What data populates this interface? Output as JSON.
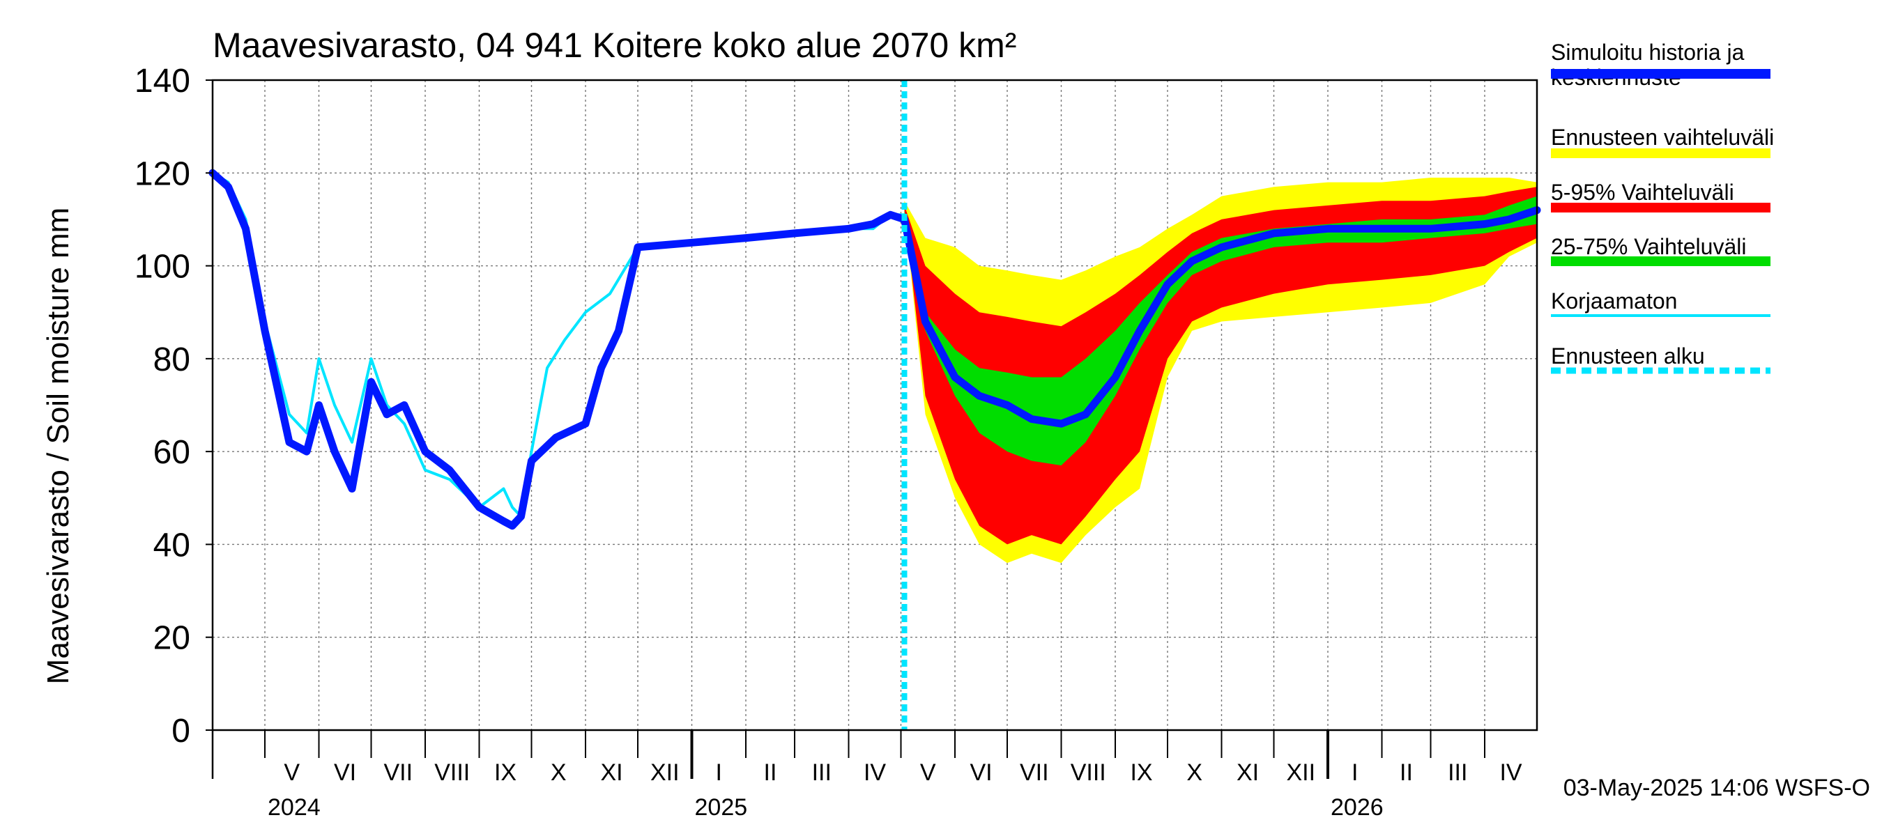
{
  "chart_data": {
    "type": "area",
    "title": "Maavesivarasto, 04 941 Koitere koko alue 2070 km²",
    "ylabel": "Maavesivarasto / Soil moisture   mm",
    "ylim": [
      0,
      140
    ],
    "yticks": [
      0,
      20,
      40,
      60,
      80,
      100,
      120,
      140
    ],
    "grid": true,
    "legend_position": "right",
    "x_axis": {
      "start": "2024-04-01",
      "end": "2026-05-01",
      "months": [
        {
          "start": "2024-04-01",
          "label": ""
        },
        {
          "start": "2024-05-01",
          "label": "V"
        },
        {
          "start": "2024-06-01",
          "label": "VI"
        },
        {
          "start": "2024-07-01",
          "label": "VII"
        },
        {
          "start": "2024-08-01",
          "label": "VIII"
        },
        {
          "start": "2024-09-01",
          "label": "IX"
        },
        {
          "start": "2024-10-01",
          "label": "X"
        },
        {
          "start": "2024-11-01",
          "label": "XI"
        },
        {
          "start": "2024-12-01",
          "label": "XII"
        },
        {
          "start": "2025-01-01",
          "label": "I"
        },
        {
          "start": "2025-02-01",
          "label": "II"
        },
        {
          "start": "2025-03-01",
          "label": "III"
        },
        {
          "start": "2025-04-01",
          "label": "IV"
        },
        {
          "start": "2025-05-01",
          "label": "V"
        },
        {
          "start": "2025-06-01",
          "label": "VI"
        },
        {
          "start": "2025-07-01",
          "label": "VII"
        },
        {
          "start": "2025-08-01",
          "label": "VIII"
        },
        {
          "start": "2025-09-01",
          "label": "IX"
        },
        {
          "start": "2025-10-01",
          "label": "X"
        },
        {
          "start": "2025-11-01",
          "label": "XI"
        },
        {
          "start": "2025-12-01",
          "label": "XII"
        },
        {
          "start": "2026-01-01",
          "label": "I"
        },
        {
          "start": "2026-02-01",
          "label": "II"
        },
        {
          "start": "2026-03-01",
          "label": "III"
        },
        {
          "start": "2026-04-01",
          "label": "IV"
        }
      ],
      "years": [
        {
          "date": "2024-05-01",
          "label": "2024"
        },
        {
          "date": "2025-01-01",
          "label": "2025"
        },
        {
          "date": "2026-01-01",
          "label": "2026"
        }
      ]
    },
    "forecast_start": "2025-05-03",
    "series": [
      {
        "name": "Ennusteen vaihteluväli",
        "kind": "band",
        "color": "#ffff00",
        "x": [
          "2025-05-03",
          "2025-05-15",
          "2025-06-01",
          "2025-06-15",
          "2025-07-01",
          "2025-07-15",
          "2025-08-01",
          "2025-08-15",
          "2025-09-01",
          "2025-09-15",
          "2025-10-01",
          "2025-10-15",
          "2025-11-01",
          "2025-12-01",
          "2026-01-01",
          "2026-02-01",
          "2026-03-01",
          "2026-04-01",
          "2026-04-15",
          "2026-05-01"
        ],
        "low": [
          112,
          68,
          50,
          40,
          36,
          38,
          36,
          42,
          48,
          52,
          76,
          86,
          88,
          89,
          90,
          91,
          92,
          96,
          102,
          105
        ],
        "high": [
          114,
          106,
          104,
          100,
          99,
          98,
          97,
          99,
          102,
          104,
          108,
          111,
          115,
          117,
          118,
          118,
          119,
          119,
          119,
          118
        ]
      },
      {
        "name": "5-95% Vaihteluväli",
        "kind": "band",
        "color": "#ff0000",
        "x": [
          "2025-05-03",
          "2025-05-15",
          "2025-06-01",
          "2025-06-15",
          "2025-07-01",
          "2025-07-15",
          "2025-08-01",
          "2025-08-15",
          "2025-09-01",
          "2025-09-15",
          "2025-10-01",
          "2025-10-15",
          "2025-11-01",
          "2025-12-01",
          "2026-01-01",
          "2026-02-01",
          "2026-03-01",
          "2026-04-01",
          "2026-04-15",
          "2026-05-01"
        ],
        "low": [
          112,
          72,
          54,
          44,
          40,
          42,
          40,
          46,
          54,
          60,
          80,
          88,
          91,
          94,
          96,
          97,
          98,
          100,
          103,
          106
        ],
        "high": [
          113,
          100,
          94,
          90,
          89,
          88,
          87,
          90,
          94,
          98,
          103,
          107,
          110,
          112,
          113,
          114,
          114,
          115,
          116,
          117
        ]
      },
      {
        "name": "25-75% Vaihteluväli",
        "kind": "band",
        "color": "#00dd00",
        "x": [
          "2025-05-03",
          "2025-05-15",
          "2025-06-01",
          "2025-06-15",
          "2025-07-01",
          "2025-07-15",
          "2025-08-01",
          "2025-08-15",
          "2025-09-01",
          "2025-09-15",
          "2025-10-01",
          "2025-10-15",
          "2025-11-01",
          "2025-12-01",
          "2026-01-01",
          "2026-02-01",
          "2026-03-01",
          "2026-04-01",
          "2026-04-15",
          "2026-05-01"
        ],
        "low": [
          111,
          86,
          72,
          64,
          60,
          58,
          57,
          62,
          72,
          82,
          92,
          98,
          101,
          104,
          105,
          105,
          106,
          107,
          108,
          109
        ],
        "high": [
          112,
          90,
          82,
          78,
          77,
          76,
          76,
          80,
          86,
          92,
          98,
          103,
          106,
          108,
          109,
          110,
          110,
          111,
          113,
          115
        ]
      },
      {
        "name": "Korjaamaton",
        "kind": "line",
        "color": "#00e5ff",
        "x": [
          "2024-04-01",
          "2024-04-10",
          "2024-04-20",
          "2024-05-01",
          "2024-05-15",
          "2024-05-25",
          "2024-06-01",
          "2024-06-10",
          "2024-06-20",
          "2024-07-01",
          "2024-07-10",
          "2024-07-20",
          "2024-08-01",
          "2024-08-15",
          "2024-09-01",
          "2024-09-15",
          "2024-09-20",
          "2024-09-25",
          "2024-10-01",
          "2024-10-10",
          "2024-10-20",
          "2024-11-01",
          "2024-11-15",
          "2024-12-01",
          "2025-01-01",
          "2025-02-01",
          "2025-03-01",
          "2025-04-01",
          "2025-04-15",
          "2025-04-25",
          "2025-05-03"
        ],
        "y": [
          120,
          118,
          110,
          88,
          68,
          64,
          80,
          70,
          62,
          80,
          70,
          66,
          56,
          54,
          48,
          52,
          48,
          46,
          60,
          78,
          84,
          90,
          94,
          104,
          105,
          106,
          107,
          108,
          108,
          111,
          111
        ]
      },
      {
        "name": "Simuloitu historia ja keskiennuste",
        "kind": "line",
        "color": "#0018ff",
        "x": [
          "2024-04-01",
          "2024-04-10",
          "2024-04-20",
          "2024-05-01",
          "2024-05-15",
          "2024-05-25",
          "2024-06-01",
          "2024-06-10",
          "2024-06-20",
          "2024-07-01",
          "2024-07-10",
          "2024-07-20",
          "2024-08-01",
          "2024-08-15",
          "2024-09-01",
          "2024-09-15",
          "2024-09-20",
          "2024-09-25",
          "2024-10-01",
          "2024-10-15",
          "2024-11-01",
          "2024-11-10",
          "2024-11-20",
          "2024-12-01",
          "2025-01-01",
          "2025-02-01",
          "2025-03-01",
          "2025-04-01",
          "2025-04-15",
          "2025-04-25",
          "2025-05-03",
          "2025-05-15",
          "2025-06-01",
          "2025-06-15",
          "2025-07-01",
          "2025-07-15",
          "2025-08-01",
          "2025-08-15",
          "2025-09-01",
          "2025-09-15",
          "2025-10-01",
          "2025-10-15",
          "2025-11-01",
          "2025-12-01",
          "2026-01-01",
          "2026-02-01",
          "2026-03-01",
          "2026-04-01",
          "2026-04-15",
          "2026-05-01"
        ],
        "y": [
          120,
          117,
          108,
          86,
          62,
          60,
          70,
          60,
          52,
          75,
          68,
          70,
          60,
          56,
          48,
          45,
          44,
          46,
          58,
          63,
          66,
          78,
          86,
          104,
          105,
          106,
          107,
          108,
          109,
          111,
          110,
          88,
          76,
          72,
          70,
          67,
          66,
          68,
          76,
          86,
          96,
          101,
          104,
          107,
          108,
          108,
          108,
          109,
          110,
          112
        ]
      },
      {
        "name": "Ennusteen alku",
        "kind": "vline",
        "color": "#00e5ff",
        "x": "2025-05-03"
      }
    ]
  },
  "legend": [
    {
      "label": "Simuloitu historia ja keskiennuste",
      "color": "#0018ff",
      "style": "solid"
    },
    {
      "label": "Ennusteen vaihteluväli",
      "color": "#ffff00",
      "style": "solid"
    },
    {
      "label": "5-95% Vaihteluväli",
      "color": "#ff0000",
      "style": "solid"
    },
    {
      "label": "25-75% Vaihteluväli",
      "color": "#00dd00",
      "style": "solid"
    },
    {
      "label": "Korjaamaton",
      "color": "#00e5ff",
      "style": "thin"
    },
    {
      "label": "Ennusteen alku",
      "color": "#00e5ff",
      "style": "dashed"
    }
  ],
  "footer": "03-May-2025 14:06 WSFS-O"
}
